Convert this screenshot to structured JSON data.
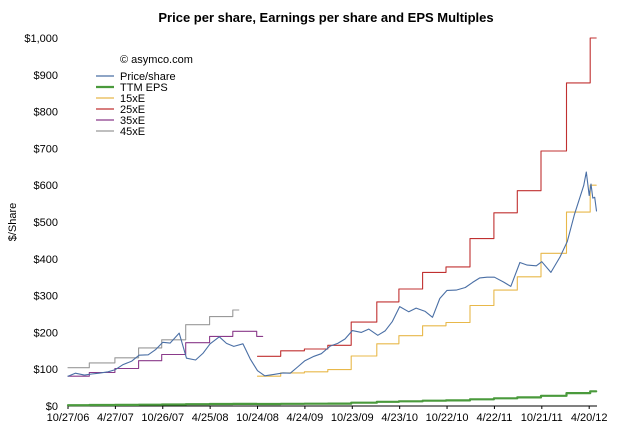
{
  "chart_data": {
    "type": "line",
    "title": "Price per share, Earnings per share and EPS Multiples",
    "xlabel": "",
    "ylabel": "$/Share",
    "ylim": [
      0,
      1000
    ],
    "yticks": [
      "$0",
      "$100",
      "$200",
      "$300",
      "$400",
      "$500",
      "$600",
      "$700",
      "$800",
      "$900",
      "$1,000"
    ],
    "ytick_values": [
      0,
      100,
      200,
      300,
      400,
      500,
      600,
      700,
      800,
      900,
      1000
    ],
    "xrange": [
      "2006-10-27",
      "2012-05-20"
    ],
    "xticks": [
      {
        "label": "10/27/06",
        "date": "2006-10-27"
      },
      {
        "label": "4/27/07",
        "date": "2007-04-27"
      },
      {
        "label": "10/26/07",
        "date": "2007-10-26"
      },
      {
        "label": "4/25/08",
        "date": "2008-04-25"
      },
      {
        "label": "10/24/08",
        "date": "2008-10-24"
      },
      {
        "label": "4/24/09",
        "date": "2009-04-24"
      },
      {
        "label": "10/23/09",
        "date": "2009-10-23"
      },
      {
        "label": "4/23/10",
        "date": "2010-04-23"
      },
      {
        "label": "10/22/10",
        "date": "2010-10-22"
      },
      {
        "label": "4/22/11",
        "date": "2011-04-22"
      },
      {
        "label": "10/21/11",
        "date": "2011-10-21"
      },
      {
        "label": "4/20/12",
        "date": "2012-04-20"
      }
    ],
    "annotation": "© asymco.com",
    "legend_position": "top-left",
    "grid": false,
    "series": [
      {
        "name": "Price/share",
        "color": "#4a6fa5",
        "step": false,
        "points": [
          [
            "2006-10-27",
            81
          ],
          [
            "2006-11-24",
            89
          ],
          [
            "2006-12-29",
            84
          ],
          [
            "2007-01-26",
            87
          ],
          [
            "2007-02-23",
            89
          ],
          [
            "2007-03-30",
            93
          ],
          [
            "2007-04-27",
            99
          ],
          [
            "2007-05-25",
            112
          ],
          [
            "2007-06-29",
            122
          ],
          [
            "2007-07-27",
            138
          ],
          [
            "2007-08-31",
            139
          ],
          [
            "2007-09-28",
            153
          ],
          [
            "2007-10-26",
            173
          ],
          [
            "2007-11-23",
            171
          ],
          [
            "2007-12-28",
            198
          ],
          [
            "2008-01-25",
            130
          ],
          [
            "2008-02-29",
            125
          ],
          [
            "2008-03-28",
            143
          ],
          [
            "2008-04-25",
            169
          ],
          [
            "2008-05-30",
            188
          ],
          [
            "2008-06-27",
            170
          ],
          [
            "2008-07-25",
            162
          ],
          [
            "2008-08-29",
            169
          ],
          [
            "2008-09-26",
            128
          ],
          [
            "2008-10-24",
            96
          ],
          [
            "2008-11-21",
            82
          ],
          [
            "2008-12-26",
            86
          ],
          [
            "2009-01-30",
            90
          ],
          [
            "2009-02-27",
            89
          ],
          [
            "2009-03-27",
            106
          ],
          [
            "2009-04-24",
            123
          ],
          [
            "2009-05-29",
            135
          ],
          [
            "2009-06-26",
            142
          ],
          [
            "2009-07-31",
            163
          ],
          [
            "2009-08-28",
            170
          ],
          [
            "2009-09-25",
            182
          ],
          [
            "2009-10-23",
            205
          ],
          [
            "2009-11-27",
            200
          ],
          [
            "2009-12-25",
            209
          ],
          [
            "2010-01-29",
            192
          ],
          [
            "2010-02-26",
            204
          ],
          [
            "2010-03-26",
            230
          ],
          [
            "2010-04-23",
            270
          ],
          [
            "2010-05-28",
            256
          ],
          [
            "2010-06-25",
            266
          ],
          [
            "2010-07-30",
            257
          ],
          [
            "2010-08-27",
            241
          ],
          [
            "2010-09-24",
            292
          ],
          [
            "2010-10-22",
            314
          ],
          [
            "2010-11-26",
            315
          ],
          [
            "2010-12-31",
            322
          ],
          [
            "2011-01-28",
            336
          ],
          [
            "2011-02-25",
            348
          ],
          [
            "2011-03-25",
            350
          ],
          [
            "2011-04-22",
            350
          ],
          [
            "2011-05-27",
            337
          ],
          [
            "2011-06-24",
            325
          ],
          [
            "2011-07-29",
            390
          ],
          [
            "2011-08-26",
            383
          ],
          [
            "2011-09-30",
            381
          ],
          [
            "2011-10-21",
            392
          ],
          [
            "2011-11-25",
            363
          ],
          [
            "2011-12-30",
            405
          ],
          [
            "2012-01-27",
            447
          ],
          [
            "2012-02-24",
            522
          ],
          [
            "2012-03-30",
            599
          ],
          [
            "2012-04-09",
            636
          ],
          [
            "2012-04-20",
            572
          ],
          [
            "2012-04-27",
            603
          ],
          [
            "2012-05-04",
            565
          ],
          [
            "2012-05-11",
            567
          ],
          [
            "2012-05-18",
            530
          ]
        ]
      },
      {
        "name": "TTM EPS",
        "color": "#4a9a3c",
        "step": true,
        "points": [
          [
            "2006-10-27",
            2.3
          ],
          [
            "2007-01-17",
            2.6
          ],
          [
            "2007-04-25",
            2.9
          ],
          [
            "2007-07-25",
            3.5
          ],
          [
            "2007-10-22",
            4.0
          ],
          [
            "2008-01-22",
            4.9
          ],
          [
            "2008-04-23",
            5.4
          ],
          [
            "2008-07-21",
            5.8
          ],
          [
            "2008-10-21",
            5.4
          ],
          [
            "2009-01-21",
            6.0
          ],
          [
            "2009-04-22",
            6.2
          ],
          [
            "2009-07-21",
            6.6
          ],
          [
            "2009-10-19",
            9.1
          ],
          [
            "2010-01-25",
            11.3
          ],
          [
            "2010-04-20",
            12.7
          ],
          [
            "2010-07-20",
            14.5
          ],
          [
            "2010-10-18",
            15.1
          ],
          [
            "2011-01-18",
            18.2
          ],
          [
            "2011-04-20",
            21.0
          ],
          [
            "2011-07-19",
            23.4
          ],
          [
            "2011-10-18",
            27.7
          ],
          [
            "2012-01-24",
            35.1
          ],
          [
            "2012-04-24",
            40.0
          ]
        ]
      },
      {
        "name": "15xE",
        "color": "#e8b84a",
        "step": true,
        "points": [
          [
            "2008-10-24",
            81
          ],
          [
            "2009-01-21",
            90
          ],
          [
            "2009-04-22",
            93
          ],
          [
            "2009-07-21",
            99
          ],
          [
            "2009-10-19",
            136
          ],
          [
            "2010-01-25",
            169
          ],
          [
            "2010-04-20",
            191
          ],
          [
            "2010-07-20",
            218
          ],
          [
            "2010-10-18",
            227
          ],
          [
            "2011-01-18",
            273
          ],
          [
            "2011-04-20",
            315
          ],
          [
            "2011-07-19",
            351
          ],
          [
            "2011-10-18",
            415
          ],
          [
            "2012-01-24",
            527
          ],
          [
            "2012-04-24",
            600
          ]
        ]
      },
      {
        "name": "25xE",
        "color": "#c03030",
        "step": true,
        "points": [
          [
            "2008-10-24",
            135
          ],
          [
            "2009-01-21",
            150
          ],
          [
            "2009-04-22",
            155
          ],
          [
            "2009-07-21",
            165
          ],
          [
            "2009-10-19",
            228
          ],
          [
            "2010-01-25",
            283
          ],
          [
            "2010-04-20",
            318
          ],
          [
            "2010-07-20",
            363
          ],
          [
            "2010-10-18",
            378
          ],
          [
            "2011-01-18",
            455
          ],
          [
            "2011-04-20",
            525
          ],
          [
            "2011-07-19",
            585
          ],
          [
            "2011-10-18",
            693
          ],
          [
            "2012-01-24",
            878
          ],
          [
            "2012-04-24",
            1000
          ]
        ]
      },
      {
        "name": "35xE",
        "color": "#8a3a8a",
        "step": true,
        "points": [
          [
            "2006-10-27",
            81
          ],
          [
            "2007-01-17",
            91
          ],
          [
            "2007-04-25",
            102
          ],
          [
            "2007-07-25",
            123
          ],
          [
            "2007-10-22",
            140
          ],
          [
            "2008-01-22",
            172
          ],
          [
            "2008-04-23",
            189
          ],
          [
            "2008-07-21",
            203
          ],
          [
            "2008-10-21",
            189
          ]
        ]
      },
      {
        "name": "45xE",
        "color": "#999999",
        "step": true,
        "points": [
          [
            "2006-10-27",
            104
          ],
          [
            "2007-01-17",
            117
          ],
          [
            "2007-04-25",
            131
          ],
          [
            "2007-07-25",
            158
          ],
          [
            "2007-10-22",
            180
          ],
          [
            "2008-01-22",
            221
          ],
          [
            "2008-04-23",
            243
          ],
          [
            "2008-07-21",
            261
          ]
        ]
      }
    ]
  }
}
